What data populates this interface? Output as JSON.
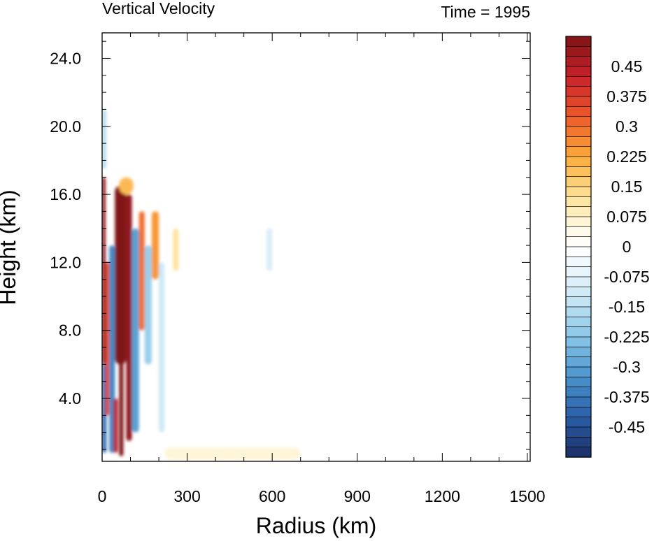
{
  "chart_data": {
    "type": "heatmap",
    "title": "Vertical Velocity",
    "subtitle": "Time = 1995",
    "xlabel": "Radius (km)",
    "ylabel": "Height (km)",
    "xlim": [
      0,
      1510
    ],
    "ylim": [
      0.3,
      25.5
    ],
    "x_ticks": [
      0,
      300,
      600,
      900,
      1200,
      1500
    ],
    "x_tick_labels": [
      "0",
      "300",
      "600",
      "900",
      "1200",
      "1500"
    ],
    "y_ticks": [
      4,
      8,
      12,
      16,
      20,
      24
    ],
    "y_tick_labels": [
      "4.0",
      "8.0",
      "12.0",
      "16.0",
      "20.0",
      "24.0"
    ],
    "colorbar": {
      "min": -0.525,
      "max": 0.525,
      "interval": 0.025,
      "label_values": [
        0.45,
        0.375,
        0.3,
        0.225,
        0.15,
        0.075,
        0,
        -0.075,
        -0.15,
        -0.225,
        -0.3,
        -0.375,
        -0.45
      ],
      "labels": [
        "0.45",
        "0.375",
        "0.3",
        "0.225",
        "0.15",
        "0.075",
        "0",
        "-0.075",
        "-0.15",
        "-0.225",
        "-0.3",
        "-0.375",
        "-0.45"
      ],
      "color_stops": [
        {
          "v": 0.525,
          "c": "#7f1416"
        },
        {
          "v": 0.425,
          "c": "#c8222a"
        },
        {
          "v": 0.325,
          "c": "#ed5a2a"
        },
        {
          "v": 0.225,
          "c": "#fbab3a"
        },
        {
          "v": 0.125,
          "c": "#fde39a"
        },
        {
          "v": 0.05,
          "c": "#fff8e2"
        },
        {
          "v": 0.0,
          "c": "#ffffff"
        },
        {
          "v": -0.05,
          "c": "#eef7fc"
        },
        {
          "v": -0.125,
          "c": "#cbe8f5"
        },
        {
          "v": -0.225,
          "c": "#8ac6e8"
        },
        {
          "v": -0.325,
          "c": "#4a94cc"
        },
        {
          "v": -0.425,
          "c": "#2a5ea8"
        },
        {
          "v": -0.525,
          "c": "#1c2e64"
        }
      ]
    },
    "features": [
      {
        "r0": 0,
        "r1": 15,
        "z0": 0.8,
        "z1": 6,
        "value": -0.4
      },
      {
        "r0": 0,
        "r1": 12,
        "z0": 6,
        "z1": 17,
        "value": 0.5
      },
      {
        "r0": 12,
        "r1": 25,
        "z0": 3,
        "z1": 12,
        "value": 0.35
      },
      {
        "r0": 25,
        "r1": 45,
        "z0": 0.8,
        "z1": 13,
        "value": -0.35
      },
      {
        "r0": 40,
        "r1": 55,
        "z0": 0.8,
        "z1": 4,
        "value": 0.45
      },
      {
        "r0": 45,
        "r1": 85,
        "z0": 6,
        "z1": 16.5,
        "value": 0.55
      },
      {
        "r0": 60,
        "r1": 75,
        "z0": 0.6,
        "z1": 8,
        "value": 0.55
      },
      {
        "r0": 85,
        "r1": 105,
        "z0": 1.5,
        "z1": 16,
        "value": 0.5
      },
      {
        "r0": 105,
        "r1": 130,
        "z0": 2,
        "z1": 14,
        "value": -0.3
      },
      {
        "r0": 130,
        "r1": 150,
        "z0": 8,
        "z1": 15,
        "value": 0.3
      },
      {
        "r0": 150,
        "r1": 175,
        "z0": 6,
        "z1": 13,
        "value": -0.2
      },
      {
        "r0": 175,
        "r1": 200,
        "z0": 11,
        "z1": 15,
        "value": 0.25
      },
      {
        "r0": 200,
        "r1": 220,
        "z0": 2,
        "z1": 12,
        "value": -0.12
      },
      {
        "r0": 250,
        "r1": 270,
        "z0": 11.5,
        "z1": 14,
        "value": 0.12
      },
      {
        "r0": 0,
        "r1": 15,
        "z0": 17.5,
        "z1": 21,
        "value": -0.15
      },
      {
        "r0": 60,
        "r1": 110,
        "z0": 16,
        "z1": 17,
        "value": 0.2
      },
      {
        "r0": 580,
        "r1": 600,
        "z0": 11.5,
        "z1": 14,
        "value": -0.1
      },
      {
        "r0": 220,
        "r1": 700,
        "z0": 0.4,
        "z1": 1.1,
        "value": 0.06
      }
    ]
  }
}
